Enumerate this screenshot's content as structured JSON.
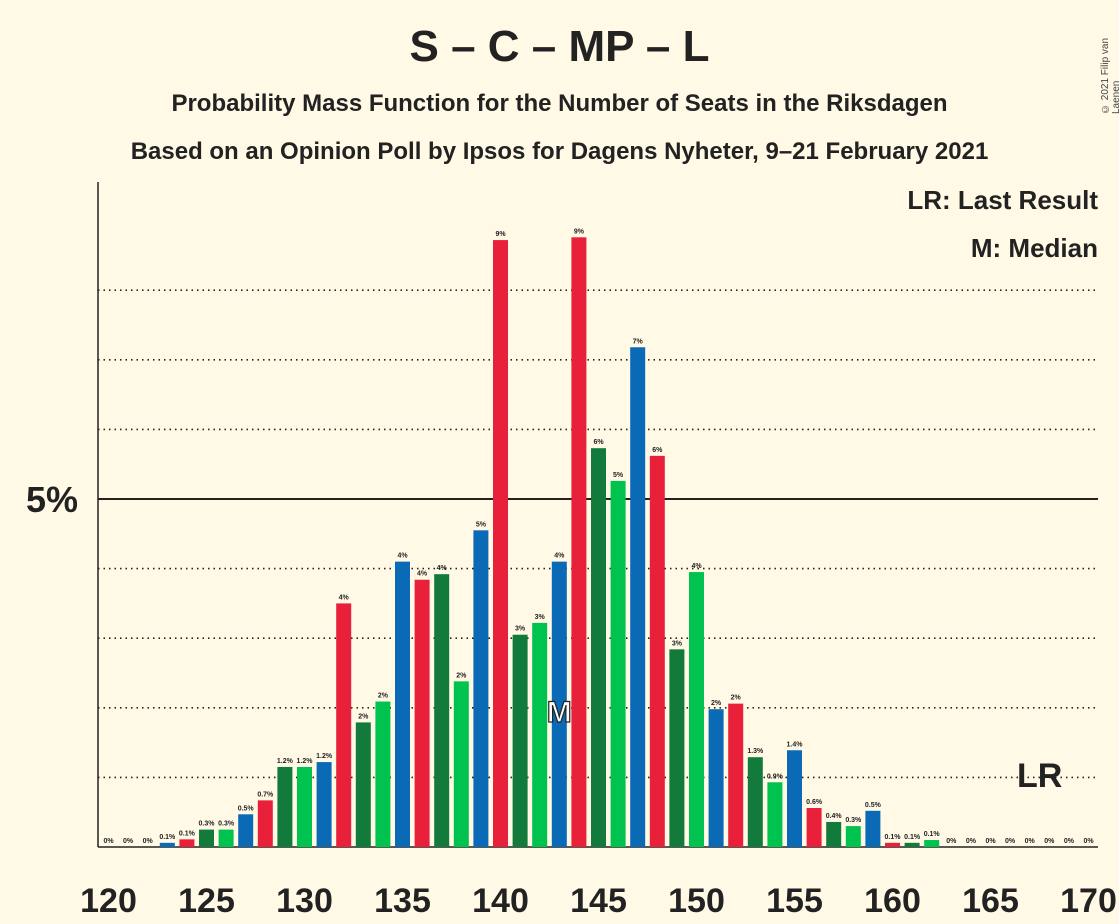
{
  "title": "S – C – MP – L",
  "subtitle": "Probability Mass Function for the Number of Seats in the Riksdagen",
  "subtitle2": "Based on an Opinion Poll by Ipsos for Dagens Nyheter, 9–21 February 2021",
  "copyright": "© 2021 Filip van Laenen",
  "legend": {
    "lr": "LR: Last Result",
    "m": "M: Median"
  },
  "markers": {
    "median_label": "M",
    "last_result_label": "LR",
    "median_seat": 143,
    "last_result_seat": 167
  },
  "colors": {
    "red": "#E8203A",
    "blue": "#0A6AB6",
    "dark_green": "#127A3A",
    "light_green": "#00C24F",
    "background": "#FFF9E6"
  },
  "chart_data": {
    "type": "bar",
    "xlabel": "",
    "ylabel": "",
    "x": [
      120,
      121,
      122,
      123,
      124,
      125,
      126,
      127,
      128,
      129,
      130,
      131,
      132,
      133,
      134,
      135,
      136,
      137,
      138,
      139,
      140,
      141,
      142,
      143,
      144,
      145,
      146,
      147,
      148,
      149,
      150,
      151,
      152,
      153,
      154,
      155,
      156,
      157,
      158,
      159,
      160,
      161,
      162,
      163,
      164,
      165,
      166,
      167,
      168,
      169,
      170
    ],
    "values": [
      0,
      0,
      0,
      0.06,
      0.11,
      0.25,
      0.25,
      0.47,
      0.67,
      1.15,
      1.15,
      1.22,
      3.5,
      1.79,
      2.09,
      4.1,
      3.84,
      3.92,
      2.38,
      4.55,
      8.72,
      3.05,
      3.22,
      4.1,
      8.76,
      5.73,
      5.26,
      7.18,
      5.62,
      2.84,
      3.95,
      1.98,
      2.06,
      1.29,
      0.93,
      1.39,
      0.56,
      0.36,
      0.3,
      0.52,
      0.06,
      0.06,
      0.1,
      0,
      0,
      0,
      0,
      0,
      0,
      0,
      0
    ],
    "labels": [
      "0%",
      "0%",
      "0%",
      "0.1%",
      "0.1%",
      "0.3%",
      "0.3%",
      "0.5%",
      "0.7%",
      "1.2%",
      "1.2%",
      "1.2%",
      "4%",
      "2%",
      "2%",
      "4%",
      "4%",
      "4%",
      "2%",
      "5%",
      "9%",
      "3%",
      "3%",
      "4%",
      "9%",
      "6%",
      "5%",
      "7%",
      "6%",
      "3%",
      "4%",
      "2%",
      "2%",
      "1.3%",
      "0.9%",
      "1.4%",
      "0.6%",
      "0.4%",
      "0.3%",
      "0.5%",
      "0.1%",
      "0.1%",
      "0.1%",
      "0%",
      "0%",
      "0%",
      "0%",
      "0%",
      "0%",
      "0%",
      "0%"
    ],
    "bar_colors": [
      "#E8203A",
      "#0A6AB6",
      "#127A3A",
      "#0A6AB6",
      "#E8203A",
      "#127A3A",
      "#00C24F",
      "#0A6AB6",
      "#E8203A",
      "#127A3A",
      "#00C24F",
      "#0A6AB6",
      "#E8203A",
      "#127A3A",
      "#00C24F",
      "#0A6AB6",
      "#E8203A",
      "#127A3A",
      "#00C24F",
      "#0A6AB6",
      "#E8203A",
      "#127A3A",
      "#00C24F",
      "#0A6AB6",
      "#E8203A",
      "#127A3A",
      "#00C24F",
      "#0A6AB6",
      "#E8203A",
      "#127A3A",
      "#00C24F",
      "#0A6AB6",
      "#E8203A",
      "#127A3A",
      "#00C24F",
      "#0A6AB6",
      "#E8203A",
      "#127A3A",
      "#00C24F",
      "#0A6AB6",
      "#E8203A",
      "#127A3A",
      "#00C24F",
      "#0A6AB6",
      "#E8203A",
      "#127A3A",
      "#00C24F",
      "#0A6AB6",
      "#E8203A",
      "#127A3A",
      "#00C24F"
    ],
    "x_ticks": [
      "120",
      "125",
      "130",
      "135",
      "140",
      "145",
      "150",
      "155",
      "160",
      "165",
      "170"
    ],
    "y_tick_label": "5%",
    "ylim": [
      0,
      9.5
    ],
    "grid": "dotted"
  }
}
